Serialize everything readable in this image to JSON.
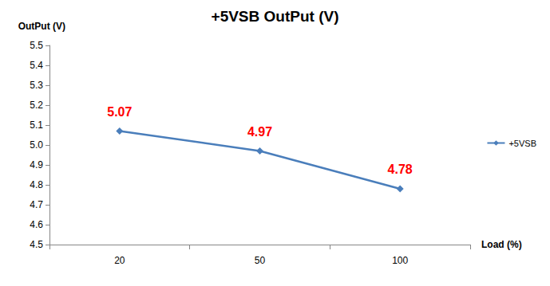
{
  "chart_data": {
    "type": "line",
    "title": "+5VSB OutPut (V)",
    "x_label": "Load (%)",
    "y_label": "OutPut (V)",
    "categories": [
      "20",
      "50",
      "100"
    ],
    "series": [
      {
        "name": "+5VSB",
        "color": "#4a7ebb",
        "values": [
          5.07,
          4.97,
          4.78
        ],
        "marker": "diamond",
        "line_style": "solid"
      }
    ],
    "ylim": [
      4.5,
      5.5
    ],
    "yticks": [
      4.5,
      4.6,
      4.7,
      4.8,
      4.9,
      {
        "value": 5,
        "label": "5.0"
      },
      5.1,
      5.2,
      5.3,
      5.4,
      5.5
    ],
    "grid": false,
    "legend": "right",
    "data_labels": true
  }
}
